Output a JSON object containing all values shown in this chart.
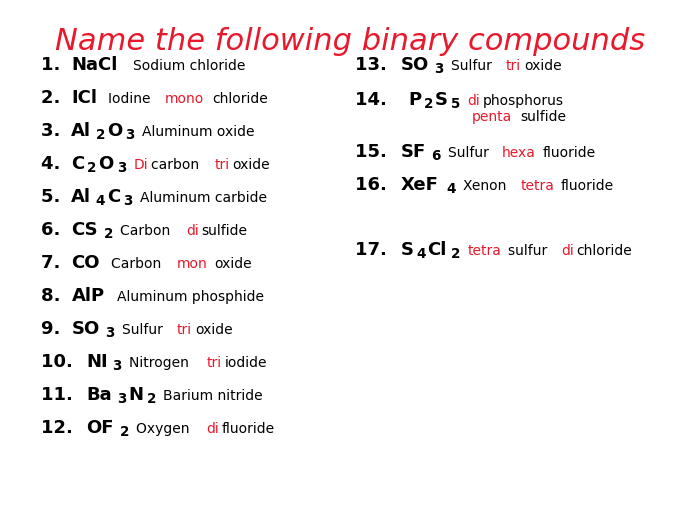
{
  "title": "Name the following binary compounds",
  "title_color": "#e8192c",
  "title_fontsize": 22,
  "background_color": "#ffffff",
  "left_items": [
    {
      "num": "1. ",
      "formula_parts": [
        {
          "text": "NaCl",
          "sub": false
        }
      ],
      "answer_parts": [
        {
          "text": "Sodium chloride",
          "color": "#000000"
        }
      ]
    },
    {
      "num": "2. ",
      "formula_parts": [
        {
          "text": "ICl",
          "sub": false
        }
      ],
      "answer_parts": [
        {
          "text": "Iodine ",
          "color": "#000000"
        },
        {
          "text": "mono",
          "color": "#e8192c"
        },
        {
          "text": "chloride",
          "color": "#000000"
        }
      ]
    },
    {
      "num": "3. ",
      "formula_parts": [
        {
          "text": "Al",
          "sub": false
        },
        {
          "text": "2",
          "sub": true
        },
        {
          "text": "O",
          "sub": false
        },
        {
          "text": "3",
          "sub": true
        }
      ],
      "answer_parts": [
        {
          "text": "Aluminum oxide",
          "color": "#000000"
        }
      ]
    },
    {
      "num": "4. ",
      "formula_parts": [
        {
          "text": "C",
          "sub": false
        },
        {
          "text": "2",
          "sub": true
        },
        {
          "text": "O",
          "sub": false
        },
        {
          "text": "3",
          "sub": true
        }
      ],
      "answer_parts": [
        {
          "text": "Di",
          "color": "#e8192c"
        },
        {
          "text": "carbon ",
          "color": "#000000"
        },
        {
          "text": "tri",
          "color": "#e8192c"
        },
        {
          "text": "oxide",
          "color": "#000000"
        }
      ]
    },
    {
      "num": "5. ",
      "formula_parts": [
        {
          "text": "Al",
          "sub": false
        },
        {
          "text": "4",
          "sub": true
        },
        {
          "text": "C",
          "sub": false
        },
        {
          "text": "3",
          "sub": true
        }
      ],
      "answer_parts": [
        {
          "text": "Aluminum carbide",
          "color": "#000000"
        }
      ]
    },
    {
      "num": "6. ",
      "formula_parts": [
        {
          "text": "CS",
          "sub": false
        },
        {
          "text": "2",
          "sub": true
        }
      ],
      "answer_parts": [
        {
          "text": "Carbon ",
          "color": "#000000"
        },
        {
          "text": "di",
          "color": "#e8192c"
        },
        {
          "text": "sulfide",
          "color": "#000000"
        }
      ]
    },
    {
      "num": "7. ",
      "formula_parts": [
        {
          "text": "CO",
          "sub": false
        }
      ],
      "answer_parts": [
        {
          "text": "Carbon ",
          "color": "#000000"
        },
        {
          "text": "mon",
          "color": "#e8192c"
        },
        {
          "text": "oxide",
          "color": "#000000"
        }
      ]
    },
    {
      "num": "8. ",
      "formula_parts": [
        {
          "text": "AlP",
          "sub": false
        }
      ],
      "answer_parts": [
        {
          "text": "Aluminum phosphide",
          "color": "#000000"
        }
      ]
    },
    {
      "num": "9. ",
      "formula_parts": [
        {
          "text": "SO",
          "sub": false
        },
        {
          "text": "3",
          "sub": true
        }
      ],
      "answer_parts": [
        {
          "text": "Sulfur ",
          "color": "#000000"
        },
        {
          "text": "tri",
          "color": "#e8192c"
        },
        {
          "text": "oxide",
          "color": "#000000"
        }
      ]
    },
    {
      "num": "10. ",
      "formula_parts": [
        {
          "text": "NI",
          "sub": false
        },
        {
          "text": "3",
          "sub": true
        }
      ],
      "answer_parts": [
        {
          "text": "Nitrogen ",
          "color": "#000000"
        },
        {
          "text": "tri",
          "color": "#e8192c"
        },
        {
          "text": "iodide",
          "color": "#000000"
        }
      ]
    },
    {
      "num": "11. ",
      "formula_parts": [
        {
          "text": "Ba",
          "sub": false
        },
        {
          "text": "3",
          "sub": true
        },
        {
          "text": "N",
          "sub": false
        },
        {
          "text": "2",
          "sub": true
        }
      ],
      "answer_parts": [
        {
          "text": "Barium nitride",
          "color": "#000000"
        }
      ]
    },
    {
      "num": "12. ",
      "formula_parts": [
        {
          "text": "OF",
          "sub": false
        },
        {
          "text": "2",
          "sub": true
        }
      ],
      "answer_parts": [
        {
          "text": "Oxygen ",
          "color": "#000000"
        },
        {
          "text": "di",
          "color": "#e8192c"
        },
        {
          "text": "fluoride",
          "color": "#000000"
        }
      ]
    }
  ],
  "right_items": [
    {
      "num": "13. ",
      "formula_parts": [
        {
          "text": "SO",
          "sub": false
        },
        {
          "text": "3",
          "sub": true
        }
      ],
      "answer_parts": [
        {
          "text": "Sulfur ",
          "color": "#000000"
        },
        {
          "text": "tri",
          "color": "#e8192c"
        },
        {
          "text": "oxide",
          "color": "#000000"
        }
      ]
    },
    {
      "num": "14.  ",
      "formula_parts": [
        {
          "text": "P",
          "sub": false
        },
        {
          "text": "2",
          "sub": true
        },
        {
          "text": "S",
          "sub": false
        },
        {
          "text": "5",
          "sub": true
        }
      ],
      "answer_parts": [
        {
          "text": "di",
          "color": "#e8192c"
        },
        {
          "text": "phosphorus\n",
          "color": "#000000"
        },
        {
          "text": "penta",
          "color": "#e8192c"
        },
        {
          "text": "sulfide",
          "color": "#000000"
        }
      ]
    },
    {
      "num": "15. ",
      "formula_parts": [
        {
          "text": "SF",
          "sub": false
        },
        {
          "text": "6",
          "sub": true
        }
      ],
      "answer_parts": [
        {
          "text": "Sulfur ",
          "color": "#000000"
        },
        {
          "text": "hexa",
          "color": "#e8192c"
        },
        {
          "text": "fluoride",
          "color": "#000000"
        }
      ]
    },
    {
      "num": "16. ",
      "formula_parts": [
        {
          "text": "XeF",
          "sub": false
        },
        {
          "text": "4",
          "sub": true
        }
      ],
      "answer_parts": [
        {
          "text": "Xenon ",
          "color": "#000000"
        },
        {
          "text": "tetra",
          "color": "#e8192c"
        },
        {
          "text": "fluoride",
          "color": "#000000"
        }
      ]
    },
    {
      "num": "17. ",
      "formula_parts": [
        {
          "text": "S",
          "sub": false
        },
        {
          "text": "4",
          "sub": true
        },
        {
          "text": "Cl",
          "sub": false
        },
        {
          "text": "2",
          "sub": true
        }
      ],
      "answer_parts": [
        {
          "text": "tetra",
          "color": "#e8192c"
        },
        {
          "text": "sulfur ",
          "color": "#000000"
        },
        {
          "text": "di",
          "color": "#e8192c"
        },
        {
          "text": "chloride",
          "color": "#000000"
        }
      ]
    }
  ]
}
